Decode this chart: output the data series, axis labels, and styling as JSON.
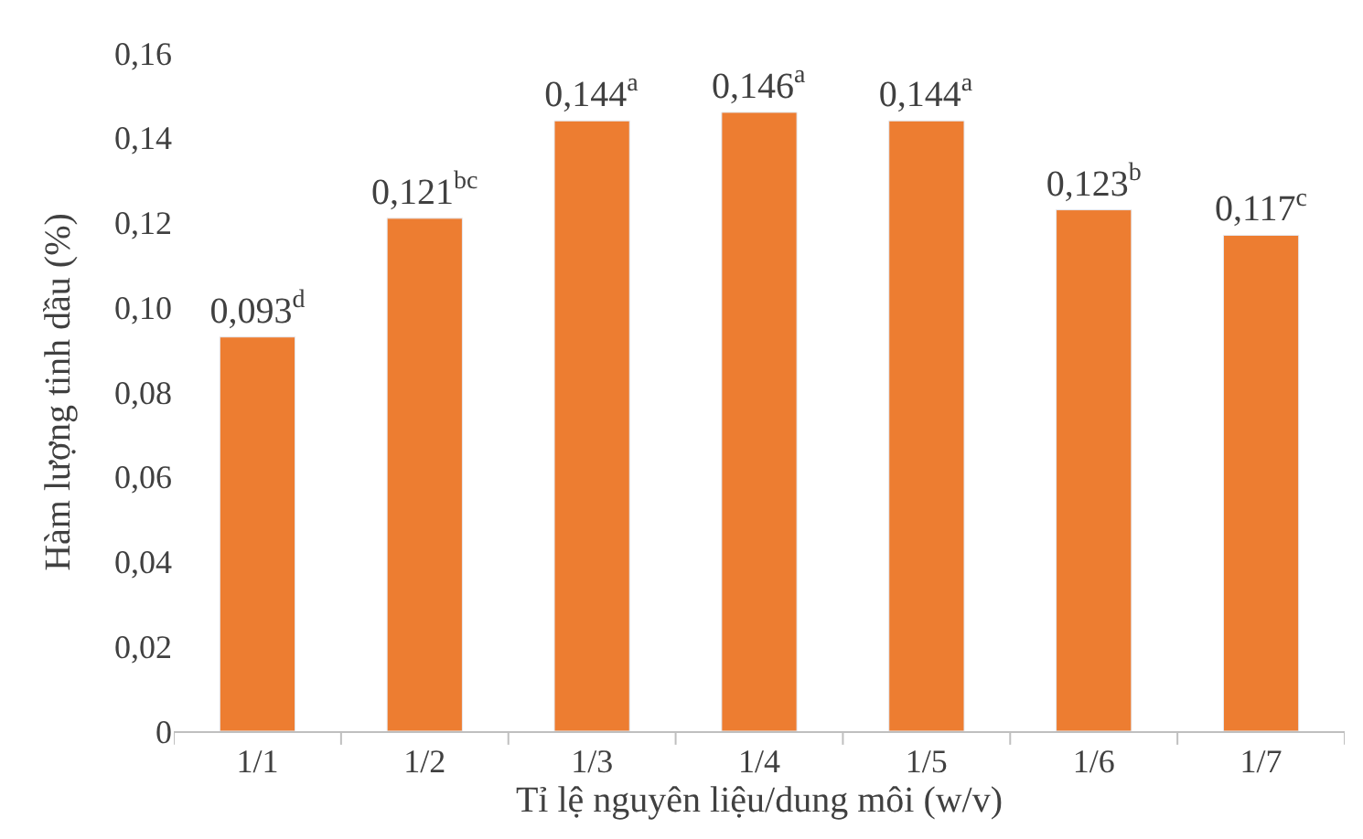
{
  "chart_data": {
    "type": "bar",
    "xlabel": "Tỉ lệ nguyên liệu/dung môi (w/v)",
    "ylabel": "Hàm lượng tinh dầu (%)",
    "categories": [
      "1/1",
      "1/2",
      "1/3",
      "1/4",
      "1/5",
      "1/6",
      "1/7"
    ],
    "values": [
      0.093,
      0.121,
      0.144,
      0.146,
      0.144,
      0.123,
      0.117
    ],
    "value_labels": [
      "0,093$^{d}$",
      "0,121$^{bc}$",
      "0,144$^{a}$",
      "0,146$^{a}$",
      "0,144$^{a}$",
      "0,123$^{b}$",
      "0,117$^{c}$"
    ],
    "color": "#ed7d31",
    "ylim": [
      0,
      0.16
    ],
    "yticks": [
      0,
      {
        "value": 0.02,
        "label": "0,02"
      },
      {
        "value": 0.04,
        "label": "0,04"
      },
      {
        "value": 0.06,
        "label": "0,06"
      },
      {
        "value": 0.08,
        "label": "0,08"
      },
      {
        "value": 0.1,
        "label": "0,10"
      },
      {
        "value": 0.12,
        "label": "0,12"
      },
      {
        "value": 0.14,
        "label": "0,14"
      },
      {
        "value": 0.16,
        "label": "0,16"
      }
    ],
    "legend": false
  }
}
